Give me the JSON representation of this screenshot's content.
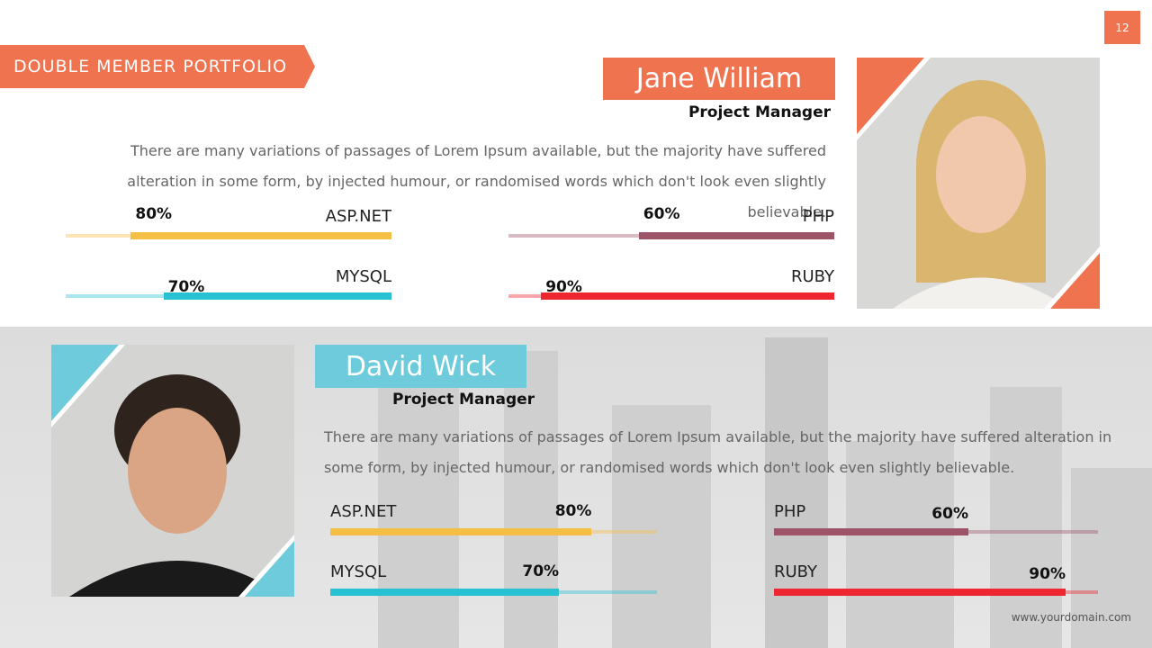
{
  "slide_number": "12",
  "title": "DOUBLE MEMBER PORTFOLIO",
  "footer": "www.yourdomain.com",
  "members": [
    {
      "name": "Jane William",
      "role": "Project Manager",
      "description": "There are many variations of passages of Lorem Ipsum available, but the majority have suffered alteration in some form, by injected humour, or randomised words which don't look even slightly believable.",
      "skills": [
        {
          "name": "ASP.NET",
          "value": 80,
          "label": "80%",
          "color": "#f5be45"
        },
        {
          "name": "PHP",
          "value": 60,
          "label": "60%",
          "color": "#9e5468"
        },
        {
          "name": "MYSQL",
          "value": 70,
          "label": "70%",
          "color": "#27c1d1"
        },
        {
          "name": "RUBY",
          "value": 90,
          "label": "90%",
          "color": "#ee2630"
        }
      ]
    },
    {
      "name": "David Wick",
      "role": "Project Manager",
      "description": "There are many variations of passages of Lorem Ipsum available, but the majority have suffered alteration in some form, by injected humour, or randomised words which don't look even slightly believable.",
      "skills": [
        {
          "name": "ASP.NET",
          "value": 80,
          "label": "80%",
          "color": "#f5be45"
        },
        {
          "name": "PHP",
          "value": 60,
          "label": "60%",
          "color": "#9e5468"
        },
        {
          "name": "MYSQL",
          "value": 70,
          "label": "70%",
          "color": "#27c1d1"
        },
        {
          "name": "RUBY",
          "value": 90,
          "label": "90%",
          "color": "#ee2630"
        }
      ]
    }
  ]
}
